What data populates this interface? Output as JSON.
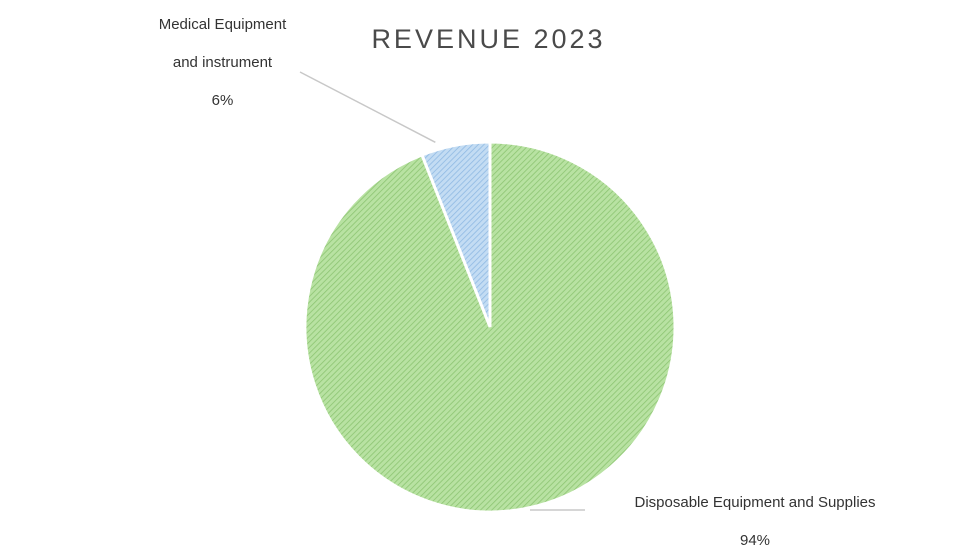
{
  "chart_data": {
    "type": "pie",
    "title": "REVENUE 2023",
    "categories": [
      "Medical Equipment and instrument",
      "Disposable Equipment and Supplies"
    ],
    "values": [
      6,
      94
    ],
    "colors": [
      "#a9cdee",
      "#a6d98a"
    ],
    "data_labels": [
      {
        "name_line1": "Medical Equipment",
        "name_line2": "and instrument",
        "percent": "6%"
      },
      {
        "name_line1": "Disposable Equipment and Supplies",
        "percent": "94%"
      }
    ],
    "legend": "none",
    "start_angle_deg": 0,
    "direction": "counterclockwise"
  }
}
